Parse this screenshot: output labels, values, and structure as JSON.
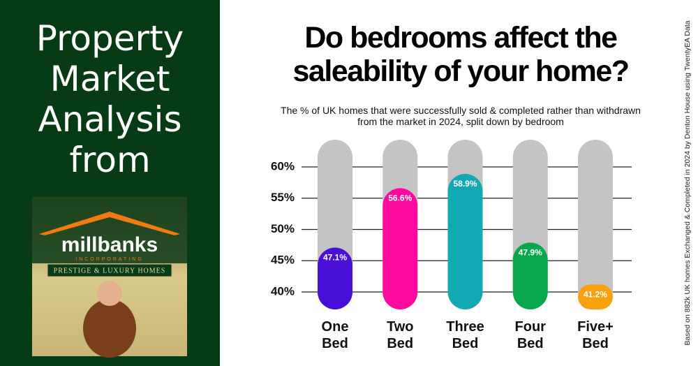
{
  "sidebar": {
    "heading": "Property Market Analysis from",
    "logo": {
      "brand": "millbanks",
      "tagline": "INCORPORATING",
      "banner": "PRESTIGE & LUXURY HOMES"
    }
  },
  "chart_data": {
    "type": "bar",
    "title": "Do bedrooms affect the saleability of your home?",
    "subtitle": "The % of UK homes that were successfully sold & completed rather than withdrawn from the market in 2024, split down by bedroom",
    "categories": [
      "One Bed",
      "Two Bed",
      "Three Bed",
      "Four Bed",
      "Five+ Bed"
    ],
    "values": [
      47.1,
      56.6,
      58.9,
      47.9,
      41.2
    ],
    "value_labels": [
      "47.1%",
      "56.6%",
      "58.9%",
      "47.9%",
      "41.2%"
    ],
    "colors": [
      "#4a10d8",
      "#ff0a9e",
      "#13a8b2",
      "#0aa64c",
      "#f8a10e"
    ],
    "ylim": [
      40,
      60
    ],
    "yticks": [
      {
        "value": 40,
        "label": "40%"
      },
      {
        "value": 45,
        "label": "45%"
      },
      {
        "value": 50,
        "label": "50%"
      },
      {
        "value": 55,
        "label": "55%"
      },
      {
        "value": 60,
        "label": "60%"
      }
    ],
    "grid": true
  },
  "source_note": "Based on 882k UK homes Exchanged & Completed in 2024 by Denton House using TwentyEA Data"
}
